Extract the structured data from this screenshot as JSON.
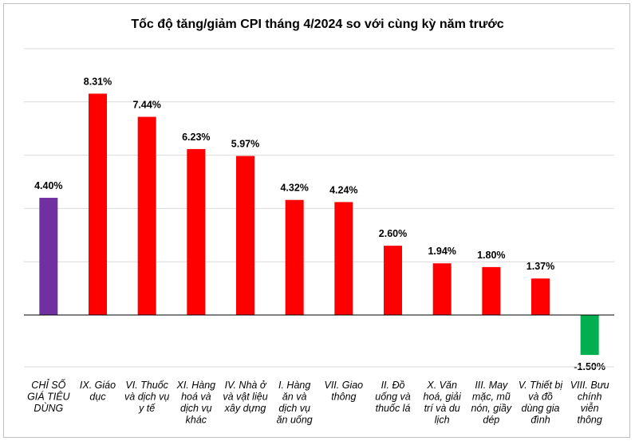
{
  "chart_data": {
    "type": "bar",
    "title": "Tốc độ tăng/giảm CPI tháng 4/2024 so với cùng kỳ năm trước",
    "xlabel": "",
    "ylabel": "",
    "ylim": [
      -2,
      10
    ],
    "grid": true,
    "legend": "none",
    "categories": [
      "CHỈ SỐ GIÁ TIÊU DÙNG",
      "IX. Giáo dục",
      "VI. Thuốc và dịch vụ y tế",
      "XI. Hàng hoá và dịch vụ khác",
      "IV. Nhà ở và vật liệu xây dựng",
      "I. Hàng ăn và dịch vụ ăn uống",
      "VII. Giao thông",
      "II. Đồ uống và thuốc lá",
      "X. Văn hoá, giải trí và du lịch",
      "III. May mặc, mũ nón, giầy dép",
      "V. Thiết bị và đồ dùng gia đình",
      "VIII. Bưu chính viễn thông"
    ],
    "category_lines": [
      [
        "CHỈ SỐ",
        "GIÁ TIÊU",
        "DÙNG"
      ],
      [
        "IX. Giáo",
        "dục"
      ],
      [
        "VI. Thuốc",
        "và dịch vụ",
        "y tế"
      ],
      [
        "XI. Hàng",
        "hoá và",
        "dịch vụ",
        "khác"
      ],
      [
        "IV. Nhà ở",
        "và vật liệu",
        "xây dựng"
      ],
      [
        "I. Hàng",
        "ăn và",
        "dịch vụ",
        "ăn uống"
      ],
      [
        "VII. Giao",
        "thông"
      ],
      [
        "II. Đồ",
        "uống và",
        "thuốc lá"
      ],
      [
        "X. Văn",
        "hoá, giải",
        "trí và du",
        "lịch"
      ],
      [
        "III. May",
        "mặc, mũ",
        "nón, giầy",
        "dép"
      ],
      [
        "V. Thiết bị",
        "và đồ",
        "dùng gia",
        "đình"
      ],
      [
        "VIII. Bưu",
        "chính",
        "viễn",
        "thông"
      ]
    ],
    "values": [
      4.4,
      8.31,
      7.44,
      6.23,
      5.97,
      4.32,
      4.24,
      2.6,
      1.94,
      1.8,
      1.37,
      -1.5
    ],
    "value_labels": [
      "4.40%",
      "8.31%",
      "7.44%",
      "6.23%",
      "5.97%",
      "4.32%",
      "4.24%",
      "2.60%",
      "1.94%",
      "1.80%",
      "1.37%",
      "-1.50%"
    ],
    "colors": [
      "#7030a0",
      "#ff0000",
      "#ff0000",
      "#ff0000",
      "#ff0000",
      "#ff0000",
      "#ff0000",
      "#ff0000",
      "#ff0000",
      "#ff0000",
      "#ff0000",
      "#00b050"
    ],
    "gridline_color": "#d9d9d9",
    "axis_color": "#000000"
  }
}
